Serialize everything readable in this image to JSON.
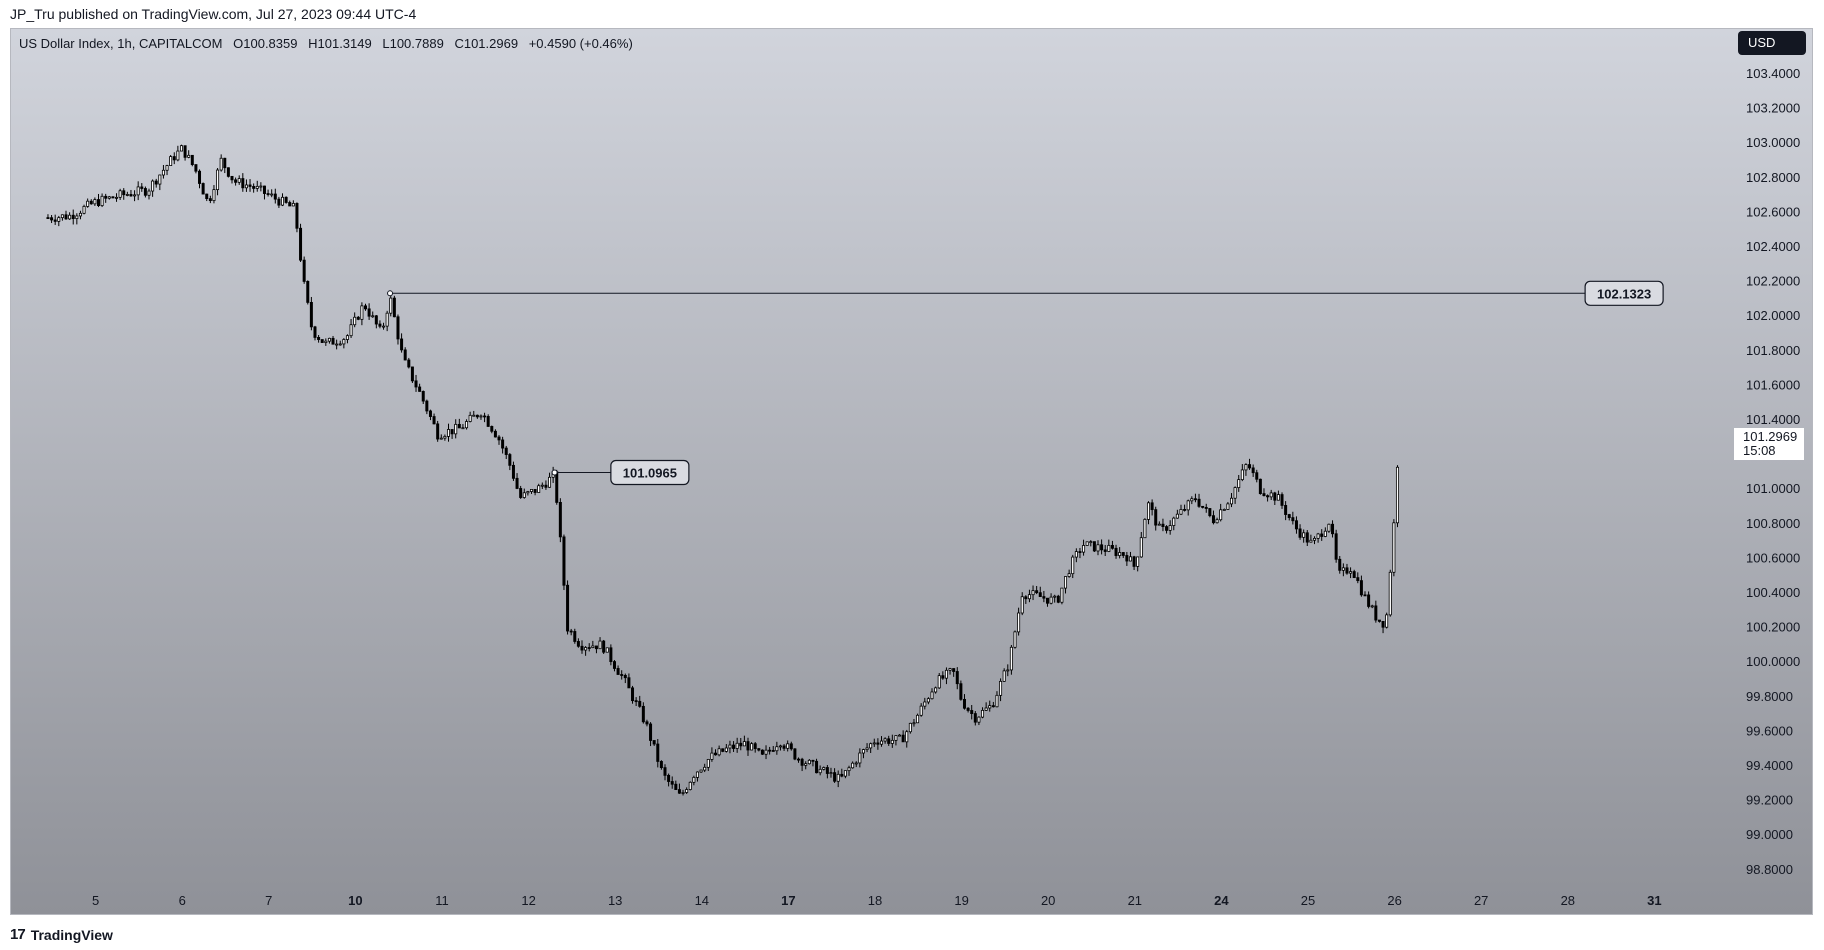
{
  "attribution": "JP_Tru published on TradingView.com, Jul 27, 2023 09:44 UTC-4",
  "brand": {
    "logo": "17",
    "name": "TradingView",
    "icon": "tradingview-logo-icon"
  },
  "legend": {
    "symbol": "US Dollar Index, 1h, CAPITALCOM",
    "open_label": "O",
    "open": "100.8359",
    "high_label": "H",
    "high": "101.3149",
    "low_label": "L",
    "low": "100.7889",
    "close_label": "C",
    "close": "101.2969",
    "change": "+0.4590 (+0.46%)"
  },
  "currency": "USD",
  "last_price": {
    "value": "101.2969",
    "countdown": "15:08"
  },
  "colors": {
    "candle_up": "#ffffff",
    "candle_down": "#000000",
    "wick": "#000000",
    "text": "#131722"
  },
  "chart_data": {
    "type": "candlestick",
    "title": "US Dollar Index, 1h, CAPITALCOM",
    "ylim": [
      98.7,
      103.5
    ],
    "y_ticks": [
      "103.4000",
      "103.2000",
      "103.0000",
      "102.8000",
      "102.6000",
      "102.4000",
      "102.2000",
      "102.0000",
      "101.8000",
      "101.6000",
      "101.4000",
      "101.2000",
      "101.0000",
      "100.8000",
      "100.6000",
      "100.4000",
      "100.2000",
      "100.0000",
      "99.8000",
      "99.6000",
      "99.4000",
      "99.2000",
      "99.0000",
      "98.8000"
    ],
    "x_ticks": [
      {
        "label": "5",
        "day": 5,
        "bold": false
      },
      {
        "label": "6",
        "day": 6,
        "bold": false
      },
      {
        "label": "7",
        "day": 7,
        "bold": false
      },
      {
        "label": "10",
        "day": 8,
        "bold": true
      },
      {
        "label": "11",
        "day": 9,
        "bold": false
      },
      {
        "label": "12",
        "day": 10,
        "bold": false
      },
      {
        "label": "13",
        "day": 11,
        "bold": false
      },
      {
        "label": "14",
        "day": 12,
        "bold": false
      },
      {
        "label": "17",
        "day": 13,
        "bold": true
      },
      {
        "label": "18",
        "day": 14,
        "bold": false
      },
      {
        "label": "19",
        "day": 15,
        "bold": false
      },
      {
        "label": "20",
        "day": 16,
        "bold": false
      },
      {
        "label": "21",
        "day": 17,
        "bold": false
      },
      {
        "label": "24",
        "day": 18,
        "bold": true
      },
      {
        "label": "25",
        "day": 19,
        "bold": false
      },
      {
        "label": "26",
        "day": 20,
        "bold": false
      },
      {
        "label": "27",
        "day": 21,
        "bold": false
      },
      {
        "label": "28",
        "day": 22,
        "bold": false
      },
      {
        "label": "31",
        "day": 23,
        "bold": true
      }
    ],
    "close_path": [
      [
        4.45,
        102.57
      ],
      [
        4.7,
        102.58
      ],
      [
        5.0,
        102.66
      ],
      [
        5.3,
        102.7
      ],
      [
        5.6,
        102.73
      ],
      [
        5.9,
        102.92
      ],
      [
        6.0,
        102.97
      ],
      [
        6.15,
        102.85
      ],
      [
        6.3,
        102.65
      ],
      [
        6.45,
        102.9
      ],
      [
        6.6,
        102.78
      ],
      [
        6.8,
        102.75
      ],
      [
        7.0,
        102.7
      ],
      [
        7.3,
        102.62
      ],
      [
        7.4,
        102.2
      ],
      [
        7.5,
        101.92
      ],
      [
        7.65,
        101.84
      ],
      [
        7.9,
        101.88
      ],
      [
        8.1,
        102.07
      ],
      [
        8.3,
        101.9
      ],
      [
        8.4,
        102.11
      ],
      [
        8.55,
        101.75
      ],
      [
        8.75,
        101.55
      ],
      [
        8.95,
        101.32
      ],
      [
        9.2,
        101.35
      ],
      [
        9.45,
        101.45
      ],
      [
        9.65,
        101.3
      ],
      [
        9.8,
        101.12
      ],
      [
        9.9,
        100.95
      ],
      [
        10.1,
        101.0
      ],
      [
        10.3,
        101.08
      ],
      [
        10.35,
        100.8
      ],
      [
        10.45,
        100.2
      ],
      [
        10.6,
        100.1
      ],
      [
        10.85,
        100.1
      ],
      [
        11.1,
        99.9
      ],
      [
        11.35,
        99.65
      ],
      [
        11.55,
        99.35
      ],
      [
        11.75,
        99.22
      ],
      [
        11.9,
        99.35
      ],
      [
        12.1,
        99.45
      ],
      [
        12.3,
        99.5
      ],
      [
        12.5,
        99.53
      ],
      [
        12.7,
        99.45
      ],
      [
        12.9,
        99.55
      ],
      [
        13.1,
        99.45
      ],
      [
        13.35,
        99.38
      ],
      [
        13.6,
        99.32
      ],
      [
        13.8,
        99.45
      ],
      [
        14.0,
        99.55
      ],
      [
        14.3,
        99.55
      ],
      [
        14.5,
        99.7
      ],
      [
        14.7,
        99.88
      ],
      [
        14.9,
        99.95
      ],
      [
        15.0,
        99.78
      ],
      [
        15.15,
        99.68
      ],
      [
        15.35,
        99.75
      ],
      [
        15.55,
        100.0
      ],
      [
        15.7,
        100.4
      ],
      [
        15.9,
        100.38
      ],
      [
        16.1,
        100.35
      ],
      [
        16.25,
        100.55
      ],
      [
        16.4,
        100.68
      ],
      [
        16.7,
        100.65
      ],
      [
        16.9,
        100.62
      ],
      [
        17.0,
        100.55
      ],
      [
        17.15,
        100.92
      ],
      [
        17.3,
        100.75
      ],
      [
        17.5,
        100.85
      ],
      [
        17.7,
        100.95
      ],
      [
        17.9,
        100.82
      ],
      [
        18.1,
        100.95
      ],
      [
        18.3,
        101.15
      ],
      [
        18.45,
        101.0
      ],
      [
        18.65,
        100.95
      ],
      [
        18.85,
        100.78
      ],
      [
        19.05,
        100.68
      ],
      [
        19.25,
        100.82
      ],
      [
        19.35,
        100.5
      ],
      [
        19.5,
        100.55
      ],
      [
        19.65,
        100.38
      ],
      [
        19.8,
        100.25
      ],
      [
        19.9,
        100.22
      ],
      [
        20.0,
        100.85
      ],
      [
        20.05,
        101.3
      ]
    ],
    "levels": [
      {
        "value": "102.1323",
        "x_start_day": 8.4,
        "x_end_day": 22.2
      },
      {
        "value": "101.0965",
        "x_start_day": 10.3,
        "x_end_day": 10.95
      }
    ]
  }
}
